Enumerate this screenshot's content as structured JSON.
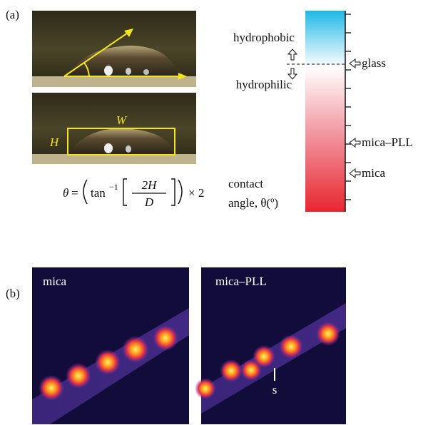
{
  "panel_a": {
    "label": "(a)",
    "photo_labels": {
      "width": "W",
      "height": "H"
    },
    "formula": {
      "theta": "θ",
      "equals": "=",
      "tan": "tan",
      "exponent": "−1",
      "numerator": "2H",
      "denominator": "D",
      "times": "× 2"
    },
    "scale": {
      "upper": "hydrophobic",
      "lower": "hydrophilic",
      "markers": [
        "glass",
        "mica–PLL",
        "mica"
      ],
      "axis_label": [
        "contact",
        "angle, θ(º)"
      ]
    }
  },
  "panel_b": {
    "label": "(b)",
    "images": [
      {
        "label": "mica"
      },
      {
        "label": "mica–PLL",
        "marker": "s"
      }
    ]
  }
}
